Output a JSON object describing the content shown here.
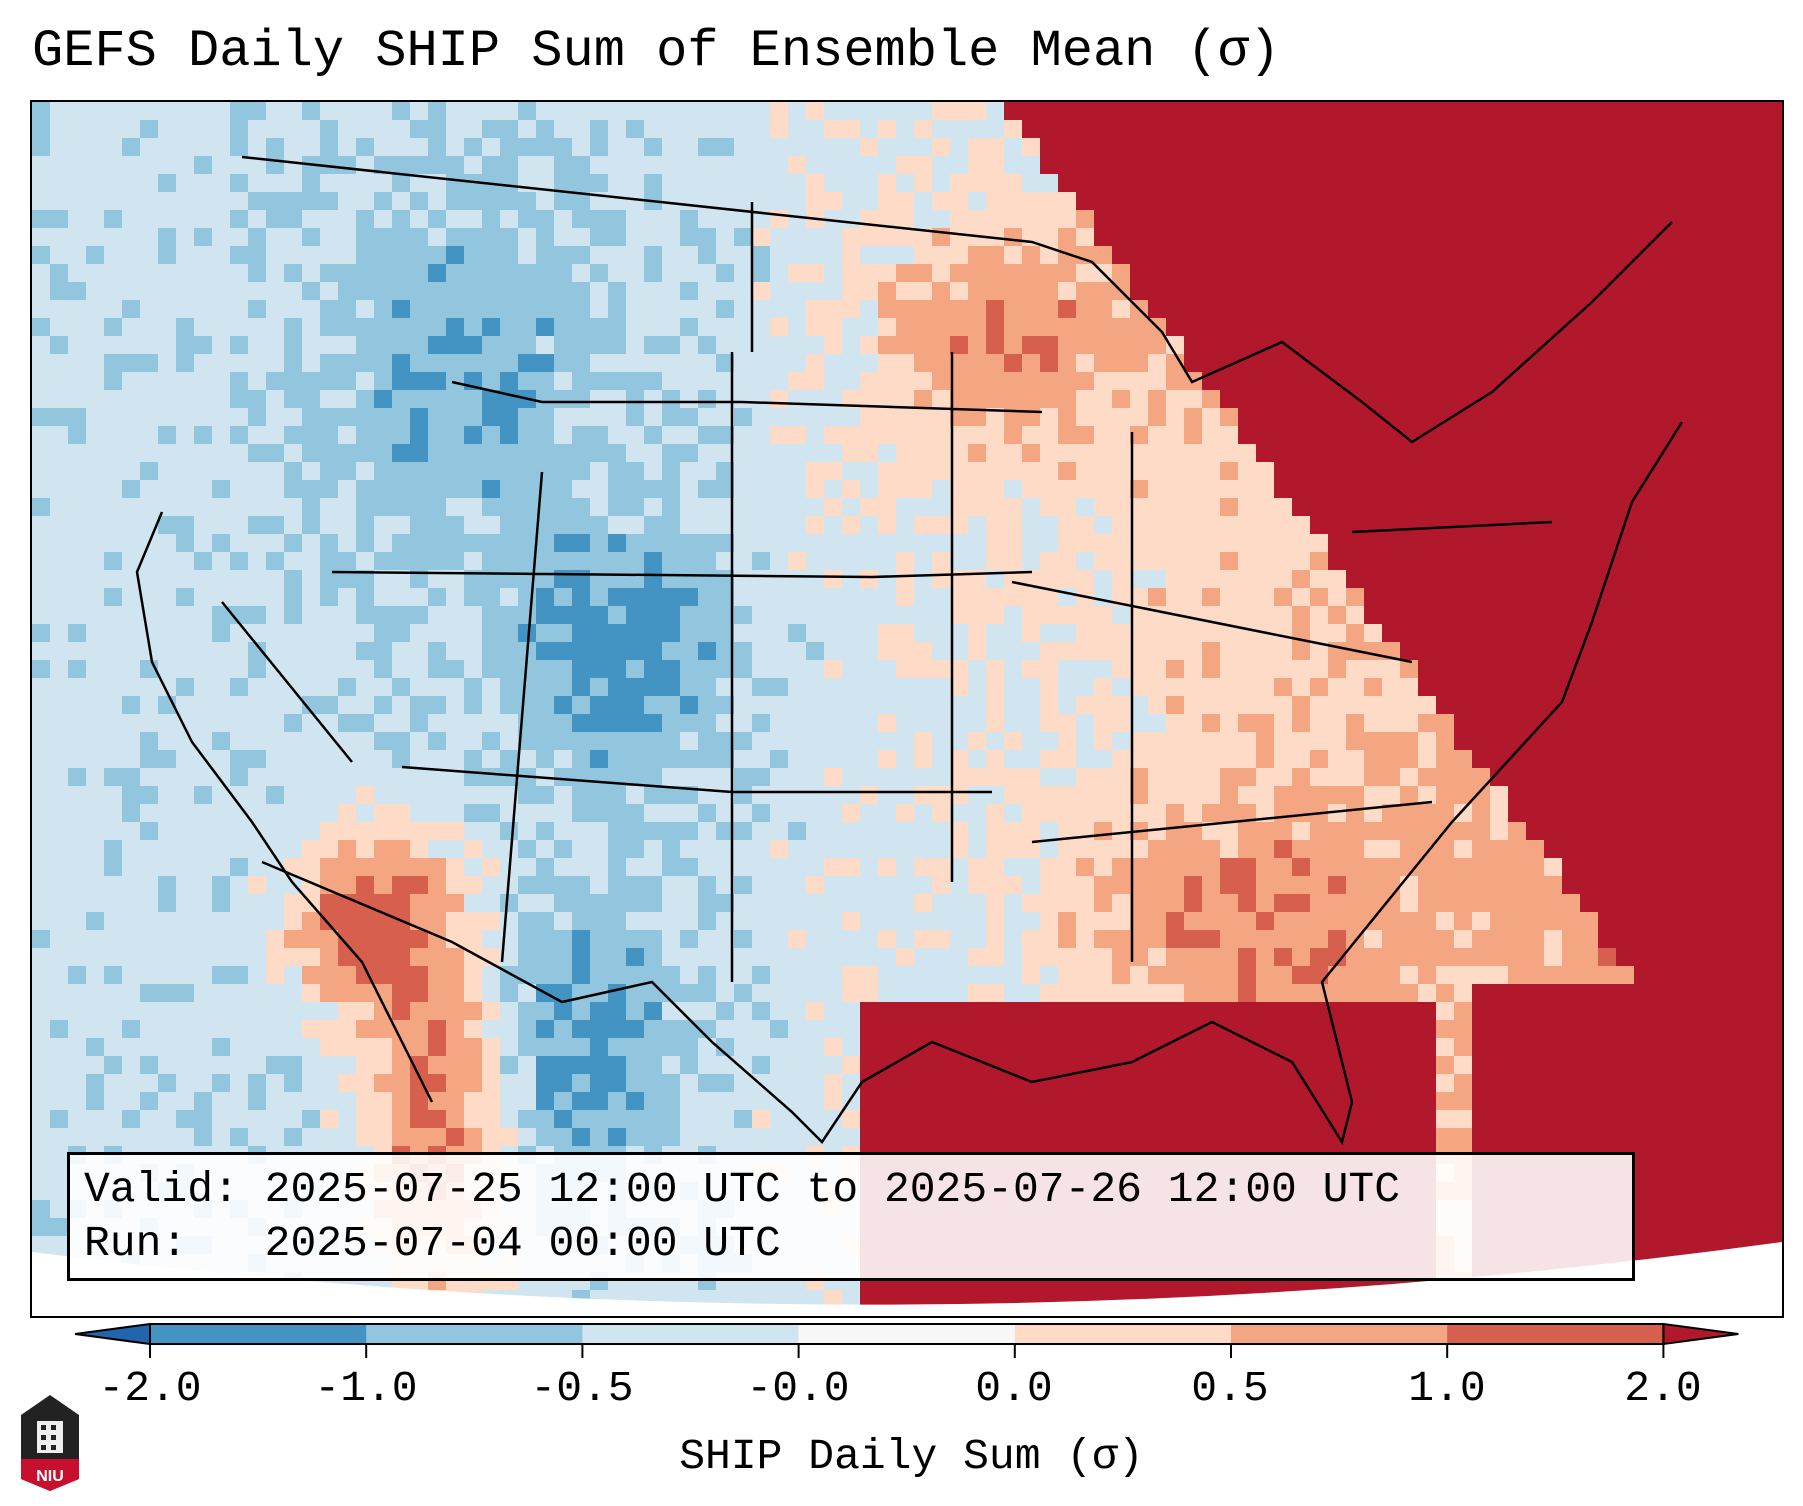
{
  "title": "GEFS Daily SHIP Sum of Ensemble Mean (σ)",
  "info_box": {
    "valid_label": "Valid:",
    "valid_value": "2025-07-25 12:00 UTC to 2025-07-26 12:00 UTC",
    "run_label": "Run:",
    "run_value": "2025-07-04 00:00 UTC"
  },
  "colorbar": {
    "label": "SHIP Daily Sum (σ)",
    "ticks": [
      "-2.0",
      "-1.0",
      "-0.5",
      "-0.0",
      "0.0",
      "0.5",
      "1.0",
      "2.0"
    ],
    "colors": [
      "#4393c3",
      "#92c5de",
      "#d1e5f0",
      "#f7f7f7",
      "#fddbc7",
      "#f4a582",
      "#d6604d"
    ],
    "under_color": "#2166ac",
    "over_color": "#b2182b"
  },
  "logo_text": "NIU"
}
